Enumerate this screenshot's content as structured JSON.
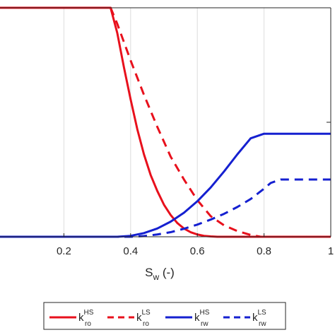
{
  "chart_data": {
    "type": "line",
    "xlabel_main": "S",
    "xlabel_sub": "w",
    "xlabel_tail": " (-)",
    "xlim": [
      0.0,
      1.0
    ],
    "ylim": [
      0.0,
      1.0
    ],
    "xticks": [
      0.2,
      0.4,
      0.6,
      0.8,
      1.0
    ],
    "xtick_labels": [
      "0.2",
      "0.4",
      "0.6",
      "0.8",
      "1"
    ],
    "grid": true,
    "legend_position": "bottom",
    "series": [
      {
        "name_main": "k",
        "name_sup": "HS",
        "name_sub": "ro",
        "color": "#e8101c",
        "style": "solid",
        "x": [
          0.0,
          0.34,
          0.36,
          0.38,
          0.4,
          0.42,
          0.44,
          0.46,
          0.48,
          0.5,
          0.52,
          0.54,
          0.56,
          0.58,
          0.6,
          0.62,
          0.64,
          0.66,
          0.68,
          0.7,
          0.72,
          0.75,
          0.8,
          1.0
        ],
        "y": [
          1.0,
          1.0,
          0.89,
          0.74,
          0.6,
          0.47,
          0.36,
          0.27,
          0.2,
          0.14,
          0.095,
          0.06,
          0.036,
          0.02,
          0.01,
          0.004,
          0.0015,
          0.0,
          0.0,
          0.0,
          0.0,
          0.0,
          0.0,
          0.0
        ]
      },
      {
        "name_main": "k",
        "name_sup": "LS",
        "name_sub": "ro",
        "color": "#e8101c",
        "style": "dashed",
        "x": [
          0.0,
          0.34,
          0.36,
          0.4,
          0.44,
          0.48,
          0.52,
          0.56,
          0.6,
          0.64,
          0.68,
          0.72,
          0.76,
          0.79,
          0.81,
          1.0
        ],
        "y": [
          1.0,
          1.0,
          0.93,
          0.77,
          0.62,
          0.48,
          0.35,
          0.25,
          0.16,
          0.09,
          0.05,
          0.025,
          0.008,
          0.0,
          0.0,
          0.0
        ]
      },
      {
        "name_main": "k",
        "name_sup": "HS",
        "name_sub": "rw",
        "color": "#1520d0",
        "style": "solid",
        "x": [
          0.0,
          0.36,
          0.4,
          0.44,
          0.48,
          0.52,
          0.56,
          0.6,
          0.64,
          0.68,
          0.72,
          0.76,
          0.8,
          1.0
        ],
        "y": [
          0.0,
          0.0,
          0.004,
          0.016,
          0.036,
          0.066,
          0.105,
          0.155,
          0.215,
          0.285,
          0.36,
          0.43,
          0.45,
          0.45
        ]
      },
      {
        "name_main": "k",
        "name_sup": "LS",
        "name_sub": "rw",
        "color": "#1520d0",
        "style": "dashed",
        "x": [
          0.0,
          0.4,
          0.44,
          0.48,
          0.52,
          0.56,
          0.6,
          0.64,
          0.68,
          0.72,
          0.76,
          0.8,
          0.82,
          0.85,
          1.0
        ],
        "y": [
          0.0,
          0.0,
          0.003,
          0.01,
          0.02,
          0.035,
          0.053,
          0.075,
          0.1,
          0.13,
          0.165,
          0.21,
          0.235,
          0.25,
          0.25
        ]
      }
    ]
  }
}
